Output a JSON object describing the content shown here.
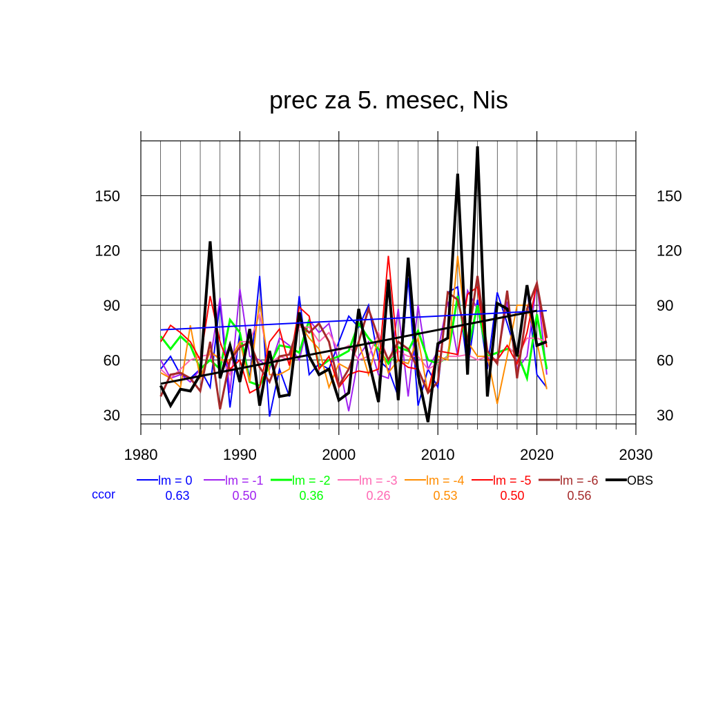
{
  "chart_data": {
    "type": "line",
    "title": "prec za 5. mesec, Nis",
    "xlabel": "",
    "ylabel": "",
    "xlim": [
      1980,
      2030
    ],
    "ylim": [
      25,
      180
    ],
    "x_ticks": [
      1980,
      1990,
      2000,
      2010,
      2020,
      2030
    ],
    "y_ticks": [
      30,
      60,
      90,
      120,
      150
    ],
    "grid": true,
    "x": [
      1982,
      1983,
      1984,
      1985,
      1986,
      1987,
      1988,
      1989,
      1990,
      1991,
      1992,
      1993,
      1994,
      1995,
      1996,
      1997,
      1998,
      1999,
      2000,
      2001,
      2002,
      2003,
      2004,
      2005,
      2006,
      2007,
      2008,
      2009,
      2010,
      2011,
      2012,
      2013,
      2014,
      2015,
      2016,
      2017,
      2018,
      2019,
      2020,
      2021
    ],
    "series": [
      {
        "name": "lm = 0",
        "color": "#0000ff",
        "width": 2,
        "values": [
          55,
          62,
          52,
          50,
          55,
          45,
          92,
          34,
          75,
          50,
          106,
          29,
          55,
          40,
          95,
          52,
          58,
          55,
          70,
          84,
          78,
          90,
          60,
          55,
          40,
          105,
          35,
          55,
          45,
          97,
          100,
          55,
          93,
          55,
          97,
          80,
          62,
          100,
          52,
          45
        ]
      },
      {
        "name": "lm = -1",
        "color": "#a020f0",
        "width": 2,
        "values": [
          60,
          50,
          52,
          48,
          55,
          60,
          94,
          42,
          99,
          62,
          60,
          55,
          72,
          68,
          60,
          82,
          75,
          80,
          58,
          32,
          62,
          70,
          52,
          50,
          88,
          40,
          90,
          55,
          65,
          92,
          62,
          98,
          88,
          62,
          60,
          92,
          55,
          62,
          103,
          52
        ]
      },
      {
        "name": "lm = -2",
        "color": "#00ff00",
        "width": 3,
        "values": [
          73,
          66,
          73,
          68,
          55,
          60,
          55,
          82,
          75,
          48,
          46,
          57,
          68,
          67,
          64,
          82,
          56,
          60,
          62,
          65,
          80,
          72,
          66,
          58,
          67,
          65,
          76,
          60,
          58,
          62,
          95,
          65,
          90,
          62,
          64,
          66,
          64,
          50,
          85,
          55
        ]
      },
      {
        "name": "lm = -3",
        "color": "#ff69b4",
        "width": 2,
        "values": [
          55,
          50,
          55,
          60,
          62,
          63,
          62,
          52,
          70,
          70,
          85,
          58,
          62,
          60,
          78,
          78,
          70,
          75,
          65,
          68,
          60,
          62,
          75,
          60,
          65,
          62,
          62,
          55,
          58,
          62,
          62,
          63,
          60,
          62,
          60,
          68,
          62,
          72,
          72,
          70
        ]
      },
      {
        "name": "lm = -4",
        "color": "#ff8c00",
        "width": 2,
        "values": [
          53,
          50,
          45,
          79,
          50,
          65,
          60,
          60,
          70,
          48,
          93,
          52,
          52,
          55,
          80,
          72,
          66,
          45,
          58,
          55,
          70,
          52,
          72,
          53,
          60,
          58,
          72,
          42,
          62,
          60,
          117,
          70,
          62,
          62,
          36,
          62,
          90,
          90,
          70,
          44
        ]
      },
      {
        "name": "lm = -5",
        "color": "#ff0000",
        "width": 2,
        "values": [
          70,
          79,
          75,
          70,
          60,
          95,
          70,
          55,
          60,
          42,
          45,
          70,
          77,
          57,
          89,
          84,
          55,
          62,
          45,
          52,
          54,
          53,
          55,
          117,
          60,
          56,
          55,
          43,
          65,
          64,
          63,
          96,
          100,
          60,
          60,
          68,
          58,
          75,
          102,
          67
        ]
      },
      {
        "name": "lm = -6",
        "color": "#a52a2a",
        "width": 3,
        "values": [
          40,
          52,
          53,
          50,
          43,
          70,
          33,
          60,
          67,
          70,
          56,
          48,
          62,
          63,
          80,
          75,
          80,
          70,
          46,
          55,
          70,
          88,
          72,
          60,
          70,
          66,
          55,
          42,
          48,
          97,
          93,
          70,
          106,
          65,
          58,
          98,
          50,
          88,
          102,
          72
        ]
      },
      {
        "name": "OBS",
        "color": "#000000",
        "width": 4,
        "values": [
          46,
          35,
          44,
          43,
          52,
          125,
          50,
          68,
          48,
          77,
          35,
          65,
          40,
          41,
          86,
          62,
          52,
          55,
          38,
          42,
          88,
          60,
          37,
          104,
          38,
          116,
          52,
          26,
          69,
          72,
          162,
          52,
          177,
          40,
          91,
          88,
          62,
          101,
          68,
          70
        ]
      }
    ],
    "trend_lines": [
      {
        "name": "lm = 0 trend",
        "color": "#0000ff",
        "width": 2,
        "x": [
          1982,
          2021
        ],
        "y": [
          76.5,
          87
        ]
      },
      {
        "name": "OBS trend",
        "color": "#000000",
        "width": 3,
        "x": [
          1982,
          2020
        ],
        "y": [
          47,
          87
        ]
      }
    ],
    "legend_placement": "bottom",
    "ccor_label": "ccor",
    "ccor_color": "#0000ff",
    "ccor": [
      "0.63",
      "0.50",
      "0.36",
      "0.26",
      "0.53",
      "0.50",
      "0.56"
    ]
  }
}
